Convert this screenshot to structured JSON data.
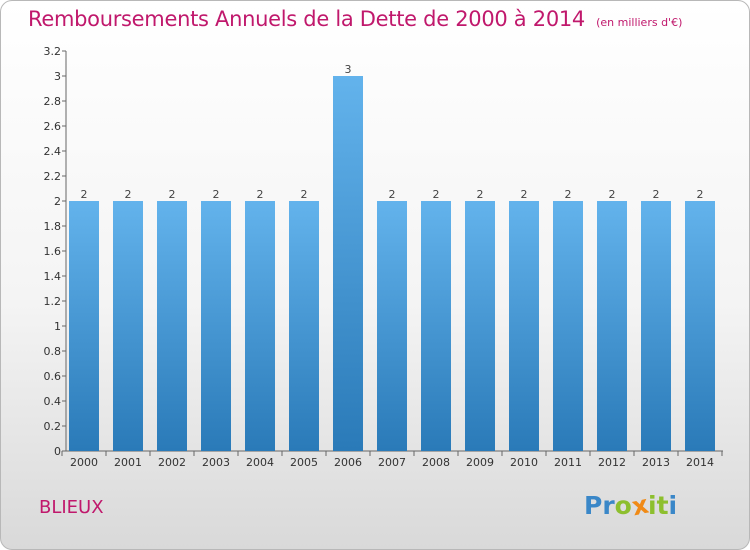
{
  "header": {
    "title": "Remboursements Annuels de la Dette de 2000 à 2014",
    "subtitle": "(en milliers d'€)"
  },
  "footer": {
    "commune": "BLIEUX",
    "logo_text": "Proxiti"
  },
  "colors": {
    "title": "#c0186c",
    "bar_top": "#63b3ec",
    "bar_bottom": "#2a7ab8",
    "logo_letters": [
      "#3a87c8",
      "#3a87c8",
      "#8dbf2e",
      "#f08a16",
      "#8dbf2e",
      "#8dbf2e",
      "#3a87c8"
    ]
  },
  "chart_data": {
    "type": "bar",
    "categories": [
      "2000",
      "2001",
      "2002",
      "2003",
      "2004",
      "2005",
      "2006",
      "2007",
      "2008",
      "2009",
      "2010",
      "2011",
      "2012",
      "2013",
      "2014"
    ],
    "values": [
      2,
      2,
      2,
      2,
      2,
      2,
      3,
      2,
      2,
      2,
      2,
      2,
      2,
      2,
      2
    ],
    "data_labels": [
      "2",
      "2",
      "2",
      "2",
      "2",
      "2",
      "3",
      "2",
      "2",
      "2",
      "2",
      "2",
      "2",
      "2",
      "2"
    ],
    "yticks": [
      {
        "value": 0,
        "label": "0"
      },
      {
        "value": 0.2,
        "label": "0.2"
      },
      {
        "value": 0.4,
        "label": "0.4"
      },
      {
        "value": 0.6,
        "label": "0.6"
      },
      {
        "value": 0.8,
        "label": "0.8"
      },
      {
        "value": 1,
        "label": "1"
      },
      {
        "value": 1.2,
        "label": "1.2"
      },
      {
        "value": 1.4,
        "label": "1.4"
      },
      {
        "value": 1.6,
        "label": "1.6"
      },
      {
        "value": 1.8,
        "label": "1.8"
      },
      {
        "value": 2,
        "label": "2"
      },
      {
        "value": 2.2,
        "label": "2.2"
      },
      {
        "value": 2.4,
        "label": "2.4"
      },
      {
        "value": 2.6,
        "label": "2.6"
      },
      {
        "value": 2.8,
        "label": "2.8"
      },
      {
        "value": 3,
        "label": "3"
      },
      {
        "value": 3.2,
        "label": "3.2"
      }
    ],
    "ylim": [
      0,
      3.2
    ],
    "grid": false,
    "title": "Remboursements Annuels de la Dette de 2000 à 2014",
    "xlabel": "",
    "ylabel": ""
  }
}
